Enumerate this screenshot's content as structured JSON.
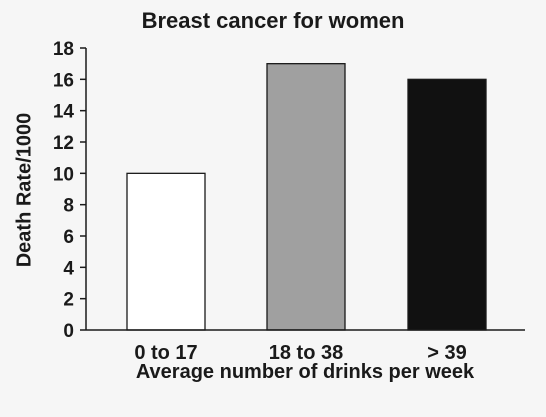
{
  "chart_data": {
    "type": "bar",
    "title": "Breast cancer for women",
    "xlabel": "Average number of drinks per week",
    "ylabel": "Death Rate/1000",
    "categories": [
      "0 to 17",
      "18 to 38",
      "> 39"
    ],
    "values": [
      10,
      17,
      16
    ],
    "bar_colors": [
      "#ffffff",
      "#a0a0a0",
      "#111111"
    ],
    "ylim": [
      0,
      18
    ],
    "yticks": [
      0,
      2,
      4,
      6,
      8,
      10,
      12,
      14,
      16,
      18
    ],
    "grid": false,
    "legend": "none"
  }
}
